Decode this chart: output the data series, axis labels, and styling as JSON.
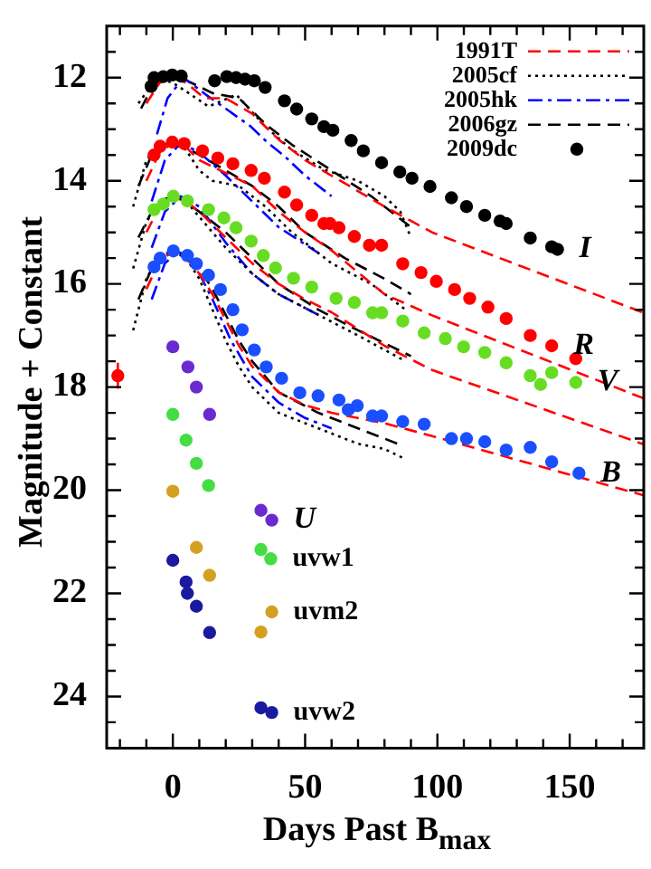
{
  "chart_data": {
    "type": "scatter",
    "xlabel": "Days Past B$_{max}$",
    "ylabel": "Magnitude + Constant",
    "xlim": [
      -25,
      178
    ],
    "ylim": [
      25,
      11
    ],
    "xticks": [
      {
        "value": -20,
        "label": null
      },
      {
        "value": -10,
        "label": null
      },
      0,
      {
        "value": 10,
        "label": null
      },
      {
        "value": 20,
        "label": null
      },
      {
        "value": 30,
        "label": null
      },
      {
        "value": 40,
        "label": null
      },
      50,
      {
        "value": 60,
        "label": null
      },
      {
        "value": 70,
        "label": null
      },
      {
        "value": 80,
        "label": null
      },
      {
        "value": 90,
        "label": null
      },
      100,
      {
        "value": 110,
        "label": null
      },
      {
        "value": 120,
        "label": null
      },
      {
        "value": 130,
        "label": null
      },
      {
        "value": 140,
        "label": null
      },
      150,
      {
        "value": 160,
        "label": null
      },
      {
        "value": 170,
        "label": null
      }
    ],
    "yticks": [
      {
        "value": 11.5,
        "label": null
      },
      12,
      {
        "value": 12.5,
        "label": null
      },
      {
        "value": 13,
        "label": null
      },
      {
        "value": 13.5,
        "label": null
      },
      14,
      {
        "value": 14.5,
        "label": null
      },
      {
        "value": 15,
        "label": null
      },
      {
        "value": 15.5,
        "label": null
      },
      16,
      {
        "value": 16.5,
        "label": null
      },
      {
        "value": 17,
        "label": null
      },
      {
        "value": 17.5,
        "label": null
      },
      18,
      {
        "value": 18.5,
        "label": null
      },
      {
        "value": 19,
        "label": null
      },
      {
        "value": 19.5,
        "label": null
      },
      20,
      {
        "value": 20.5,
        "label": null
      },
      {
        "value": 21,
        "label": null
      },
      {
        "value": 21.5,
        "label": null
      },
      22,
      {
        "value": 22.5,
        "label": null
      },
      {
        "value": 23,
        "label": null
      },
      {
        "value": 23.5,
        "label": null
      },
      24,
      {
        "value": 24.5,
        "label": null
      }
    ],
    "legend": "top right",
    "marker": "circle",
    "series": [
      {
        "type": "line",
        "name": "1991T",
        "color": "#ff0000",
        "line_style": "dashed",
        "marker": "none",
        "x": [
          -10,
          -5,
          0,
          5,
          12,
          20,
          30,
          40,
          50,
          60,
          80,
          98,
          178
        ],
        "values": [
          12.5,
          12.1,
          12.0,
          12.1,
          12.4,
          12.4,
          12.7,
          13.2,
          13.6,
          13.9,
          14.5,
          15.0,
          16.56
        ]
      },
      {
        "type": "line",
        "name": "2005cf",
        "color": "#000000",
        "line_style": "dotted",
        "marker": "none",
        "x": [
          -13,
          -6,
          0,
          6,
          13.5,
          24,
          35,
          45,
          57,
          70,
          80,
          86,
          90
        ],
        "values": [
          12.5,
          12.0,
          12.1,
          12.3,
          12.56,
          12.33,
          12.95,
          13.4,
          13.78,
          14.0,
          14.3,
          14.6,
          15.1
        ]
      },
      {
        "type": "line",
        "name": "2005hk",
        "color": "#0000ff",
        "line_style": "dashdot",
        "marker": "none",
        "x": [
          -6,
          -2,
          4,
          12.5,
          20,
          29.5,
          35,
          43,
          50,
          60
        ],
        "values": [
          13.1,
          12.4,
          12.0,
          12.33,
          12.6,
          12.95,
          13.22,
          13.56,
          13.9,
          14.3
        ]
      },
      {
        "type": "line",
        "name": "2006gz",
        "color": "#000000",
        "line_style": "dashed",
        "marker": "none",
        "x": [
          -12,
          -8,
          -3,
          5,
          15,
          25,
          35,
          45,
          60,
          75,
          90
        ],
        "values": [
          12.6,
          12.2,
          12.0,
          12.05,
          12.3,
          12.4,
          12.9,
          13.3,
          13.8,
          14.3,
          14.9
        ]
      },
      {
        "type": "line",
        "color": "#ff0000",
        "line_style": "dashed",
        "marker": "none",
        "x": [
          -10,
          -5,
          0,
          5,
          10,
          20,
          30,
          40,
          50,
          60,
          80,
          98,
          178
        ],
        "values": [
          14.0,
          13.45,
          13.27,
          13.35,
          13.6,
          13.85,
          14.1,
          14.6,
          15.0,
          15.35,
          16.2,
          16.61,
          18.22
        ]
      },
      {
        "type": "line",
        "color": "#000000",
        "line_style": "dotted",
        "marker": "none",
        "x": [
          -15,
          -10,
          -5,
          0,
          5,
          10,
          15,
          25,
          35,
          45,
          60,
          75,
          88
        ],
        "values": [
          14.5,
          13.6,
          13.3,
          13.27,
          13.4,
          13.8,
          14.0,
          14.1,
          14.5,
          15.0,
          15.6,
          16.0,
          16.5
        ]
      },
      {
        "type": "line",
        "color": "#0000ff",
        "line_style": "dashdot",
        "marker": "none",
        "x": [
          -8,
          -3,
          3,
          10,
          20,
          30,
          40,
          55
        ],
        "values": [
          14.4,
          13.6,
          13.27,
          13.45,
          13.9,
          14.4,
          14.9,
          15.4
        ]
      },
      {
        "type": "line",
        "color": "#000000",
        "line_style": "dashed",
        "marker": "none",
        "x": [
          -13,
          -8,
          -3,
          3,
          10,
          20,
          30,
          40,
          50,
          65,
          80,
          90
        ],
        "values": [
          14.1,
          13.5,
          13.3,
          13.3,
          13.5,
          13.8,
          14.1,
          14.5,
          15.0,
          15.5,
          15.9,
          16.2
        ]
      },
      {
        "type": "line",
        "color": "#ff0000",
        "line_style": "dashed",
        "marker": "none",
        "x": [
          -10,
          -5,
          0,
          5,
          10,
          20,
          30,
          40,
          50,
          60,
          80,
          98,
          178
        ],
        "values": [
          15.0,
          14.5,
          14.32,
          14.4,
          14.6,
          15.1,
          15.6,
          16.0,
          16.3,
          16.55,
          17.2,
          17.67,
          19.11
        ]
      },
      {
        "type": "line",
        "color": "#000000",
        "line_style": "dotted",
        "marker": "none",
        "x": [
          -15,
          -10,
          -5,
          0,
          5,
          10,
          20,
          30,
          40,
          55,
          70,
          88
        ],
        "values": [
          15.7,
          14.8,
          14.4,
          14.3,
          14.4,
          14.7,
          15.3,
          15.8,
          16.2,
          16.6,
          17.0,
          17.5
        ]
      },
      {
        "type": "line",
        "color": "#0000ff",
        "line_style": "dashdot",
        "marker": "none",
        "x": [
          -8,
          -3,
          3,
          10,
          20,
          30,
          40,
          55
        ],
        "values": [
          15.3,
          14.6,
          14.3,
          14.5,
          15.2,
          15.8,
          16.2,
          16.6
        ]
      },
      {
        "type": "line",
        "color": "#000000",
        "line_style": "dashed",
        "marker": "none",
        "x": [
          -13,
          -8,
          -3,
          3,
          10,
          20,
          30,
          40,
          55,
          70,
          90
        ],
        "values": [
          15.1,
          14.6,
          14.35,
          14.35,
          14.6,
          15.0,
          15.5,
          16.0,
          16.5,
          16.9,
          17.4
        ]
      },
      {
        "type": "line",
        "color": "#ff0000",
        "line_style": "dashed",
        "marker": "none",
        "x": [
          -10,
          -5,
          0,
          5,
          10,
          15,
          20,
          25,
          30,
          40,
          50,
          60,
          80,
          98,
          178
        ],
        "values": [
          16.1,
          15.55,
          15.37,
          15.5,
          15.8,
          16.2,
          16.7,
          17.2,
          17.6,
          18.1,
          18.35,
          18.5,
          18.7,
          18.95,
          20.1
        ]
      },
      {
        "type": "line",
        "color": "#000000",
        "line_style": "dotted",
        "marker": "none",
        "x": [
          -15,
          -10,
          -5,
          0,
          5,
          10,
          15,
          20,
          25,
          30,
          40,
          55,
          70,
          80,
          88
        ],
        "values": [
          16.9,
          15.9,
          15.45,
          15.37,
          15.5,
          15.9,
          16.5,
          17.1,
          17.6,
          18.0,
          18.5,
          18.8,
          19.1,
          19.2,
          19.4
        ]
      },
      {
        "type": "line",
        "color": "#0000ff",
        "line_style": "dashdot",
        "marker": "none",
        "x": [
          -8,
          -3,
          2,
          8,
          15,
          22,
          30,
          40,
          50,
          60
        ],
        "values": [
          16.3,
          15.6,
          15.37,
          15.6,
          16.3,
          17.1,
          17.8,
          18.3,
          18.6,
          18.8
        ]
      },
      {
        "type": "line",
        "color": "#000000",
        "line_style": "dashed",
        "marker": "none",
        "x": [
          -13,
          -8,
          -3,
          3,
          10,
          15,
          20,
          25,
          30,
          40,
          55,
          70,
          85
        ],
        "values": [
          16.3,
          15.7,
          15.4,
          15.4,
          15.7,
          16.1,
          16.6,
          17.1,
          17.5,
          18.1,
          18.5,
          18.8,
          19.1
        ]
      },
      {
        "name": "2009dc",
        "color": "#000000",
        "x": [
          -8.2,
          -7.1,
          -3.6,
          -0.2,
          3.2,
          15.8,
          20.4,
          23.9,
          27.3,
          30.8,
          34.9,
          42.2,
          46.8,
          52.5,
          57.1,
          60.5,
          67.4,
          72,
          78.9,
          85.8,
          90.4,
          97.2,
          105.3,
          111,
          117.9,
          123.7,
          126,
          135.1,
          143.2,
          145.4
        ],
        "values": [
          12.17,
          12.0,
          11.98,
          11.95,
          11.97,
          12.06,
          11.98,
          12.0,
          12.03,
          12.06,
          12.19,
          12.45,
          12.61,
          12.8,
          12.95,
          13.02,
          13.22,
          13.42,
          13.65,
          13.83,
          13.95,
          14.11,
          14.33,
          14.5,
          14.67,
          14.78,
          14.83,
          15.11,
          15.28,
          15.33
        ]
      },
      {
        "color": "#ff0000",
        "x": [
          -7.1,
          -4.8,
          -0.2,
          4.3,
          11.2,
          17,
          22.7,
          29.6,
          34.6,
          42.2,
          46.8,
          52.5,
          57.1,
          59.4,
          62.8,
          68.6,
          74.3,
          78.9,
          86.9,
          93.8,
          99.6,
          106.5,
          112.2,
          119.1,
          126,
          135.1,
          143.2,
          152.3
        ],
        "values": [
          13.5,
          13.33,
          13.25,
          13.28,
          13.42,
          13.56,
          13.67,
          13.8,
          13.95,
          14.22,
          14.47,
          14.67,
          14.83,
          14.83,
          14.91,
          15.08,
          15.25,
          15.25,
          15.61,
          15.78,
          15.95,
          16.11,
          16.28,
          16.45,
          16.67,
          17.0,
          17.2,
          17.45
        ]
      },
      {
        "color": "#66dd22",
        "x": [
          -7.1,
          -3.6,
          0.2,
          5.5,
          13.5,
          19.3,
          23.9,
          29.6,
          34.2,
          38.8,
          45.6,
          52.5,
          61.7,
          68.6,
          75.5,
          78.9,
          86.9,
          95,
          103,
          109.9,
          117.9,
          126,
          135.1,
          139,
          143.2,
          152.3
        ],
        "values": [
          14.56,
          14.45,
          14.3,
          14.39,
          14.56,
          14.72,
          14.91,
          15.17,
          15.45,
          15.69,
          15.89,
          16.06,
          16.28,
          16.36,
          16.56,
          16.56,
          16.72,
          16.95,
          17.06,
          17.22,
          17.33,
          17.53,
          17.78,
          17.95,
          17.72,
          17.91
        ]
      },
      {
        "color": "#1a4fff",
        "x": [
          -7.1,
          -4.8,
          0.2,
          5.5,
          8.9,
          13.5,
          18,
          22.7,
          26.2,
          30.8,
          35.3,
          41.1,
          48,
          54.9,
          62.8,
          66.3,
          69.7,
          75.5,
          78.9,
          86.9,
          95,
          105.3,
          111,
          117.9,
          126,
          135.1,
          143.2,
          153.5
        ],
        "values": [
          15.67,
          15.5,
          15.36,
          15.45,
          15.61,
          15.83,
          16.11,
          16.5,
          16.89,
          17.28,
          17.61,
          17.83,
          18.11,
          18.17,
          18.25,
          18.44,
          18.36,
          18.56,
          18.56,
          18.67,
          18.72,
          19.0,
          19.0,
          19.06,
          19.22,
          19.17,
          19.45,
          19.67
        ]
      },
      {
        "color": "#6a2ad0",
        "x": [
          0,
          5.7,
          8.9,
          13.9,
          33.3,
          37.4
        ],
        "values": [
          17.22,
          17.61,
          18.0,
          18.53,
          20.39,
          20.58
        ]
      },
      {
        "color": "#44dd44",
        "x": [
          0,
          5,
          8.9,
          13.5,
          33.3,
          37
        ],
        "values": [
          18.53,
          19.03,
          19.48,
          19.91,
          21.15,
          21.33
        ]
      },
      {
        "color": "#d4a020",
        "x": [
          0,
          8.9,
          13.9,
          33.3,
          37.4
        ],
        "values": [
          20.02,
          21.11,
          21.65,
          22.75,
          22.36
        ]
      },
      {
        "color": "#1a1aa0",
        "x": [
          0,
          5,
          5.5,
          8.9,
          13.9,
          33.3,
          37.4
        ],
        "values": [
          21.36,
          21.78,
          22.0,
          22.25,
          22.76,
          24.22,
          24.31
        ]
      },
      {
        "color": "#ff0000",
        "x": [
          -20.8
        ],
        "values": [
          17.78
        ],
        "errors": [
          0.25
        ]
      }
    ],
    "annotations": [
      {
        "text": "I",
        "x": 145.4,
        "y": 15.33
      },
      {
        "text": "R",
        "x": 143.2,
        "y": 17.2
      },
      {
        "text": "V",
        "x": 152.3,
        "y": 17.91
      },
      {
        "text": "B",
        "x": 153.5,
        "y": 19.67
      },
      {
        "text": "U",
        "x": 37.4,
        "y": 20.58
      },
      {
        "text": "uvw1",
        "x": 37,
        "y": 21.33
      },
      {
        "text": "uvm2",
        "x": 37.4,
        "y": 22.36
      },
      {
        "text": "uvw2",
        "x": 37.4,
        "y": 24.31
      }
    ]
  }
}
